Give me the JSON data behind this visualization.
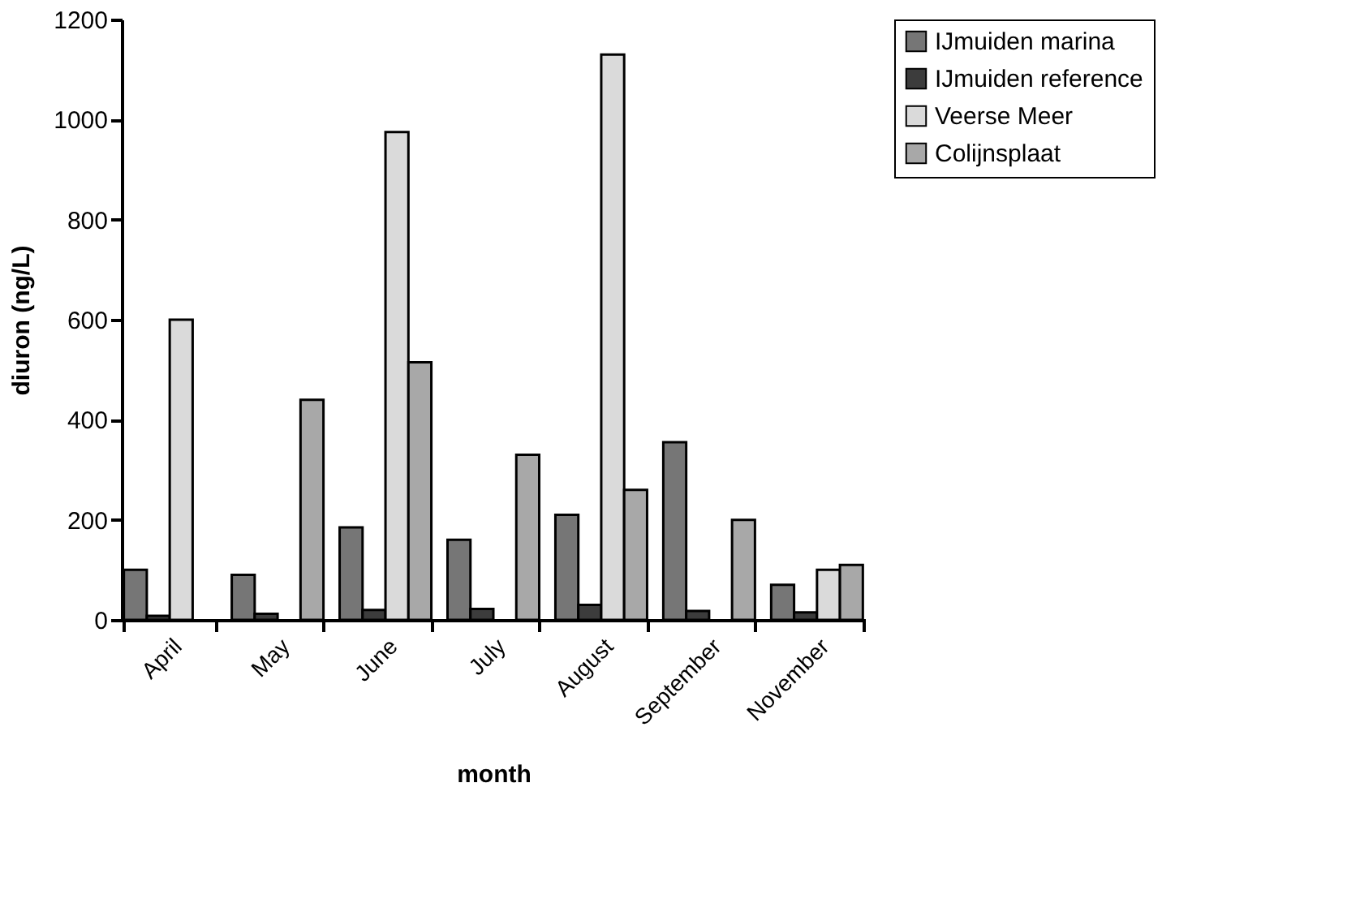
{
  "chart_data": {
    "type": "bar",
    "xlabel": "month",
    "ylabel": "diuron (ng/L)",
    "categories": [
      "April",
      "May",
      "June",
      "July",
      "August",
      "September",
      "November"
    ],
    "series": [
      {
        "name": "IJmuiden marina",
        "color": "#767676",
        "values": [
          100,
          90,
          185,
          160,
          210,
          355,
          70
        ]
      },
      {
        "name": "IJmuiden reference",
        "color": "#3c3c3c",
        "values": [
          8,
          12,
          20,
          22,
          30,
          18,
          15
        ]
      },
      {
        "name": "Veerse Meer",
        "color": "#dadada",
        "values": [
          600,
          null,
          975,
          null,
          1130,
          null,
          100
        ]
      },
      {
        "name": "Colijnsplaat",
        "color": "#a8a8a8",
        "values": [
          null,
          440,
          515,
          330,
          260,
          200,
          110
        ]
      }
    ],
    "ylim": [
      0,
      1200
    ],
    "yticks": [
      0,
      200,
      400,
      600,
      800,
      1000,
      1200
    ],
    "grid": false,
    "legend": "right"
  }
}
